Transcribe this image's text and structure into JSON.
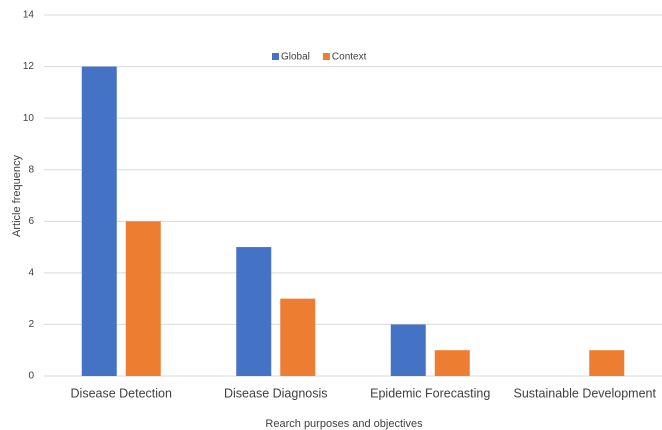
{
  "chart_data": {
    "type": "bar",
    "categories": [
      "Disease Detection",
      "Disease Diagnosis",
      "Epidemic Forecasting",
      "Sustainable Development"
    ],
    "series": [
      {
        "name": "Global",
        "color": "#4472c4",
        "values": [
          12,
          5,
          2,
          0
        ]
      },
      {
        "name": "Context",
        "color": "#ed7d31",
        "values": [
          6,
          3,
          1,
          1
        ]
      }
    ],
    "ylim": [
      0,
      14
    ],
    "yticks": [
      0,
      2,
      4,
      6,
      8,
      10,
      12,
      14
    ],
    "grid": true,
    "y_label": "Article frequency",
    "x_label": "Rearch purposes and objectives"
  }
}
